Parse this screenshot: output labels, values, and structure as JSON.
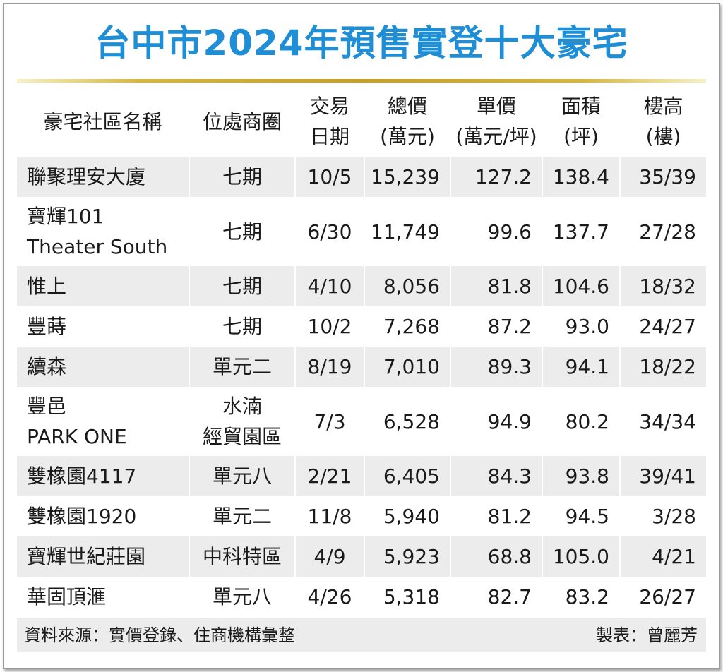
{
  "title": "台中市2024年預售實登十大豪宅",
  "columns": [
    {
      "line1": "豪宅社區名稱",
      "line2": ""
    },
    {
      "line1": "位處商圈",
      "line2": ""
    },
    {
      "line1": "交易",
      "line2": "日期"
    },
    {
      "line1": "總價",
      "line2": "(萬元)"
    },
    {
      "line1": "單價",
      "line2": "(萬元/坪)"
    },
    {
      "line1": "面積",
      "line2": "(坪)"
    },
    {
      "line1": "樓高",
      "line2": "(樓)"
    }
  ],
  "rows": [
    {
      "name1": "聯聚理安大廈",
      "name2": "",
      "area1": "七期",
      "area2": "",
      "date": "10/5",
      "total": "15,239",
      "unit": "127.2",
      "size": "138.4",
      "floors": "35/39"
    },
    {
      "name1": "寶輝101",
      "name2": "Theater South",
      "area1": "七期",
      "area2": "",
      "date": "6/30",
      "total": "11,749",
      "unit": "99.6",
      "size": "137.7",
      "floors": "27/28"
    },
    {
      "name1": "惟上",
      "name2": "",
      "area1": "七期",
      "area2": "",
      "date": "4/10",
      "total": "8,056",
      "unit": "81.8",
      "size": "104.6",
      "floors": "18/32"
    },
    {
      "name1": "豐蒔",
      "name2": "",
      "area1": "七期",
      "area2": "",
      "date": "10/2",
      "total": "7,268",
      "unit": "87.2",
      "size": "93.0",
      "floors": "24/27"
    },
    {
      "name1": "續森",
      "name2": "",
      "area1": "單元二",
      "area2": "",
      "date": "8/19",
      "total": "7,010",
      "unit": "89.3",
      "size": "94.1",
      "floors": "18/22"
    },
    {
      "name1": "豐邑",
      "name2": "PARK ONE",
      "area1": "水湳",
      "area2": "經貿園區",
      "date": "7/3",
      "total": "6,528",
      "unit": "94.9",
      "size": "80.2",
      "floors": "34/34"
    },
    {
      "name1": "雙橡園4117",
      "name2": "",
      "area1": "單元八",
      "area2": "",
      "date": "2/21",
      "total": "6,405",
      "unit": "84.3",
      "size": "93.8",
      "floors": "39/41"
    },
    {
      "name1": "雙橡園1920",
      "name2": "",
      "area1": "單元二",
      "area2": "",
      "date": "11/8",
      "total": "5,940",
      "unit": "81.2",
      "size": "94.5",
      "floors": "3/28"
    },
    {
      "name1": "寶輝世紀莊園",
      "name2": "",
      "area1": "中科特區",
      "area2": "",
      "date": "4/9",
      "total": "5,923",
      "unit": "68.8",
      "size": "105.0",
      "floors": "4/21"
    },
    {
      "name1": "華固頂滙",
      "name2": "",
      "area1": "單元八",
      "area2": "",
      "date": "4/26",
      "total": "5,318",
      "unit": "82.7",
      "size": "83.2",
      "floors": "26/27"
    }
  ],
  "footer": {
    "source": "資料來源：實價登錄、住商機構彙整",
    "maker": "製表：曾麗芳"
  },
  "colors": {
    "title": "#1e8fd6",
    "rule": "#c9a021",
    "stripe": "#ececec"
  }
}
